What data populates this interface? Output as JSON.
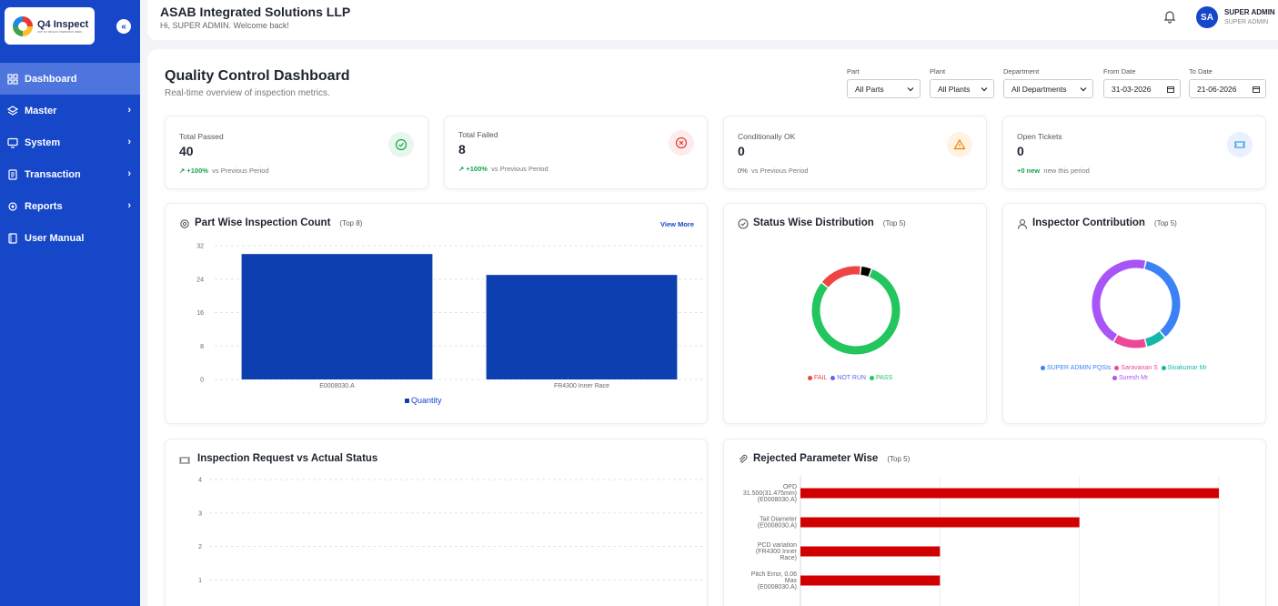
{
  "brand": {
    "name": "Q4 Inspect",
    "tagline": "one for all your inspection tasks"
  },
  "sidebar": {
    "collapse_label": "«",
    "items": [
      {
        "label": "Dashboard",
        "active": true,
        "icon": "grid-icon"
      },
      {
        "label": "Master",
        "icon": "layers-icon",
        "has_children": true
      },
      {
        "label": "System",
        "icon": "monitor-icon",
        "has_children": true
      },
      {
        "label": "Transaction",
        "icon": "document-icon",
        "has_children": true
      },
      {
        "label": "Reports",
        "icon": "gear-icon",
        "has_children": true
      },
      {
        "label": "User Manual",
        "icon": "book-icon"
      }
    ]
  },
  "header": {
    "company": "ASAB Integrated Solutions LLP",
    "welcome": "Hi, SUPER ADMIN. Welcome back!",
    "avatar_initials": "SA",
    "user_name": "SUPER ADMIN",
    "user_role": "SUPER ADMIN"
  },
  "page": {
    "title": "Quality Control Dashboard",
    "subtitle": "Real-time overview of inspection metrics."
  },
  "filters": [
    {
      "label": "Part",
      "value": "All Parts"
    },
    {
      "label": "Plant",
      "value": "All Plants"
    },
    {
      "label": "Department",
      "value": "All Departments"
    },
    {
      "label": "From Date",
      "value": "31-03-2026"
    },
    {
      "label": "To Date",
      "value": "21-06-2026"
    }
  ],
  "kpis": [
    {
      "label": "Total Passed",
      "value": "40",
      "trend_value": "+100%",
      "trend_text": "vs Previous Period",
      "icon": "check-circle-icon",
      "color": "#14a44d"
    },
    {
      "label": "Total Failed",
      "value": "8",
      "trend_value": "+100%",
      "trend_text": "vs Previous Period",
      "icon": "x-circle-icon",
      "color": "#e53935"
    },
    {
      "label": "Conditionally OK",
      "value": "0",
      "trend_value": "0%",
      "trend_text": "vs Previous Period",
      "icon": "warning-icon",
      "color": "#f57c00"
    },
    {
      "label": "Open Tickets",
      "value": "0",
      "trend_value": "+0 new",
      "trend_text": "new this period",
      "icon": "ticket-icon",
      "color": "#1e88e5"
    }
  ],
  "panels": {
    "part_wise": {
      "title": "Part Wise Inspection Count",
      "sub": "(Top 8)",
      "link": "View More",
      "legend": "Quantity"
    },
    "status_wise": {
      "title": "Status Wise Distribution",
      "sub": "(Top 5)",
      "legend": [
        "FAIL",
        "NOT RUN",
        "PASS"
      ]
    },
    "inspector": {
      "title": "Inspector Contribution",
      "sub": "(Top 5)",
      "legend": [
        "SUPER ADMIN PQSIs",
        "Saravanan S",
        "Sivakumar Mr",
        "Suresh Mr"
      ]
    },
    "request_vs_actual": {
      "title": "Inspection Request vs Actual Status"
    },
    "rejected": {
      "title": "Rejected Parameter Wise",
      "sub": "(Top 5)"
    }
  },
  "chart_data": [
    {
      "type": "bar",
      "categories": [
        "E0008030.A",
        "FR4300 Inner Race"
      ],
      "values": [
        30,
        25
      ],
      "ylim": [
        0,
        32
      ],
      "yticks": [
        0,
        8,
        16,
        24,
        32
      ],
      "series_name": "Quantity",
      "color": "#0d3fb0"
    },
    {
      "type": "pie",
      "labels": [
        "PASS",
        "FAIL",
        "NOT RUN"
      ],
      "values": [
        40,
        8,
        2
      ],
      "colors": [
        "#22c55e",
        "#ef4444",
        "#000000"
      ],
      "legend_colors": {
        "FAIL": "#ef4444",
        "NOT RUN": "#6366f1",
        "PASS": "#22c55e"
      }
    },
    {
      "type": "pie",
      "labels": [
        "SUPER ADMIN PQSIs",
        "Sivakumar Mr",
        "Saravanan S",
        "Suresh Mr"
      ],
      "values": [
        28,
        6,
        10,
        36
      ],
      "colors": [
        "#3b82f6",
        "#14b8a6",
        "#ec4899",
        "#a855f7"
      ]
    },
    {
      "type": "line",
      "yticks": [
        1,
        2,
        3,
        4
      ],
      "ylim": [
        0,
        4
      ]
    },
    {
      "type": "bar",
      "orientation": "horizontal",
      "categories": [
        [
          "OPD",
          "31.500(31.475mm)",
          "(E0008030.A)"
        ],
        [
          "Tail Diameter",
          "(E0008030.A)"
        ],
        [
          "PCD variation",
          "(FR4300 Inner",
          "Race)"
        ],
        [
          "Pitch Error, 0.06",
          "Max",
          "(E0008030.A)"
        ]
      ],
      "values": [
        3,
        2,
        1,
        1
      ],
      "xlim": [
        0,
        3.3
      ],
      "color": "#d10000"
    }
  ]
}
